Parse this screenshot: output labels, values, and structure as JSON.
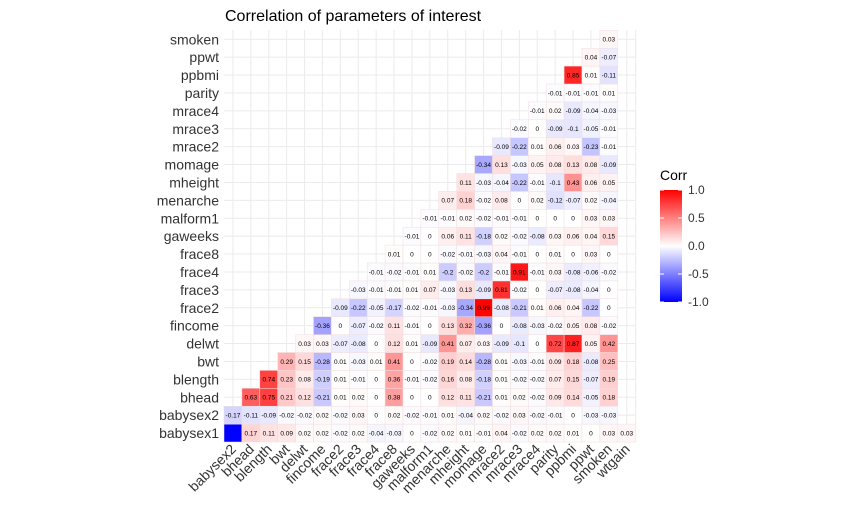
{
  "chart_data": {
    "type": "heatmap",
    "title": "Correlation of parameters of interest",
    "variables": [
      "babysex1",
      "babysex2",
      "bhead",
      "blength",
      "bwt",
      "delwt",
      "fincome",
      "frace2",
      "frace3",
      "frace4",
      "frace8",
      "gaweeks",
      "malform1",
      "menarche",
      "mheight",
      "momage",
      "mrace2",
      "mrace3",
      "mrace4",
      "parity",
      "ppbmi",
      "ppwt",
      "smoken",
      "wtgain"
    ],
    "x_tick_labels": [
      "babysex2",
      "bhead",
      "blength",
      "bwt",
      "delwt",
      "fincome",
      "frace2",
      "frace3",
      "frace4",
      "frace8",
      "gaweeks",
      "malform1",
      "menarche",
      "mheight",
      "momage",
      "mrace2",
      "mrace3",
      "mrace4",
      "parity",
      "ppbmi",
      "ppwt",
      "smoken",
      "wtgain"
    ],
    "y_tick_labels": [
      "babysex1",
      "babysex2",
      "bhead",
      "blength",
      "bwt",
      "delwt",
      "fincome",
      "frace2",
      "frace3",
      "frace4",
      "frace8",
      "gaweeks",
      "malform1",
      "menarche",
      "mheight",
      "momage",
      "mrace2",
      "mrace3",
      "mrace4",
      "parity",
      "ppbmi",
      "ppwt",
      "smoken"
    ],
    "rows": [
      {
        "var": "babysex1",
        "labels": [
          "",
          "0.17",
          "0.11",
          "0.09",
          "0.02",
          "0.02",
          "-0.02",
          "0.02",
          "-0.04",
          "-0.03",
          "0",
          "-0.02",
          "0.02",
          "0.01",
          "-0.01",
          "0.04",
          "-0.02",
          "0.02",
          "0.02",
          "0.01",
          "0",
          "0.03",
          "0.03"
        ],
        "values": [
          -1,
          0.17,
          0.11,
          0.09,
          0.02,
          0.02,
          -0.02,
          0.02,
          -0.04,
          -0.03,
          0,
          -0.02,
          0.02,
          0.01,
          -0.01,
          0.04,
          -0.02,
          0.02,
          0.02,
          0.01,
          0,
          0.03,
          0.03
        ]
      },
      {
        "var": "babysex2",
        "labels": [
          "-0.17",
          "-0.11",
          "-0.09",
          "-0.02",
          "-0.02",
          "0.02",
          "-0.02",
          "0.03",
          "0",
          "0.02",
          "-0.02",
          "-0.01",
          "0.01",
          "-0.04",
          "0.02",
          "-0.02",
          "0.03",
          "-0.02",
          "-0.01",
          "0",
          "-0.03",
          "-0.03"
        ],
        "values": [
          -0.17,
          -0.11,
          -0.09,
          -0.02,
          -0.02,
          0.02,
          -0.02,
          0.03,
          0,
          0.02,
          -0.02,
          -0.01,
          0.01,
          -0.04,
          0.02,
          -0.02,
          0.03,
          -0.02,
          -0.01,
          0,
          -0.03,
          -0.03
        ]
      },
      {
        "var": "bhead",
        "labels": [
          "0.63",
          "0.75",
          "0.21",
          "0.12",
          "-0.21",
          "0.01",
          "0.02",
          "0",
          "0.38",
          "0",
          "0",
          "0.12",
          "0.11",
          "-0.21",
          "0.01",
          "0.02",
          "-0.02",
          "0.09",
          "0.14",
          "-0.05",
          "0.18"
        ],
        "values": [
          0.63,
          0.75,
          0.21,
          0.12,
          -0.21,
          0.01,
          0.02,
          0,
          0.38,
          0,
          0,
          0.12,
          0.11,
          -0.21,
          0.01,
          0.02,
          -0.02,
          0.09,
          0.14,
          -0.05,
          0.18
        ]
      },
      {
        "var": "blength",
        "labels": [
          "0.74",
          "0.23",
          "0.08",
          "-0.19",
          "0.01",
          "-0.01",
          "0",
          "0.36",
          "-0.01",
          "-0.02",
          "0.16",
          "0.08",
          "-0.18",
          "0.01",
          "-0.02",
          "-0.02",
          "0.07",
          "0.15",
          "-0.07",
          "0.19"
        ],
        "values": [
          0.74,
          0.23,
          0.08,
          -0.19,
          0.01,
          -0.01,
          0,
          0.36,
          -0.01,
          -0.02,
          0.16,
          0.08,
          -0.18,
          0.01,
          -0.02,
          -0.02,
          0.07,
          0.15,
          -0.07,
          0.19
        ]
      },
      {
        "var": "bwt",
        "labels": [
          "0.29",
          "0.15",
          "-0.28",
          "0.01",
          "-0.03",
          "0.01",
          "0.41",
          "0",
          "-0.02",
          "0.19",
          "0.14",
          "-0.28",
          "0.01",
          "-0.03",
          "-0.01",
          "0.09",
          "0.18",
          "-0.08",
          "0.25"
        ],
        "values": [
          0.29,
          0.15,
          -0.28,
          0.01,
          -0.03,
          0.01,
          0.41,
          0,
          -0.02,
          0.19,
          0.14,
          -0.28,
          0.01,
          -0.03,
          -0.01,
          0.09,
          0.18,
          -0.08,
          0.25
        ]
      },
      {
        "var": "delwt",
        "labels": [
          "0.03",
          "0.03",
          "-0.07",
          "-0.08",
          "0",
          "0.12",
          "0.01",
          "-0.09",
          "0.41",
          "0.07",
          "0.03",
          "-0.09",
          "-0.1",
          "0",
          "0.72",
          "0.87",
          "0.05",
          "0.42"
        ],
        "values": [
          0.03,
          0.03,
          -0.07,
          -0.08,
          0,
          0.12,
          0.01,
          -0.09,
          0.41,
          0.07,
          0.03,
          -0.09,
          -0.1,
          0,
          0.72,
          0.87,
          0.05,
          0.42
        ]
      },
      {
        "var": "fincome",
        "labels": [
          "-0.36",
          "0",
          "-0.07",
          "-0.02",
          "0.11",
          "-0.01",
          "0",
          "0.13",
          "0.32",
          "-0.36",
          "0",
          "-0.08",
          "-0.03",
          "-0.02",
          "0.05",
          "0.08",
          "-0.02"
        ],
        "values": [
          -0.36,
          0,
          -0.07,
          -0.02,
          0.11,
          -0.01,
          0,
          0.13,
          0.32,
          -0.36,
          0,
          -0.08,
          -0.03,
          -0.02,
          0.05,
          0.08,
          -0.02
        ]
      },
      {
        "var": "frace2",
        "labels": [
          "-0.09",
          "-0.22",
          "-0.05",
          "-0.17",
          "-0.02",
          "-0.01",
          "-0.03",
          "-0.34",
          "0.99",
          "-0.08",
          "-0.21",
          "0.01",
          "0.06",
          "0.04",
          "-0.22",
          "0"
        ],
        "values": [
          -0.09,
          -0.22,
          -0.05,
          -0.17,
          -0.02,
          -0.01,
          -0.03,
          -0.34,
          0.99,
          -0.08,
          -0.21,
          0.01,
          0.06,
          0.04,
          -0.22,
          0
        ]
      },
      {
        "var": "frace3",
        "labels": [
          "-0.03",
          "-0.01",
          "-0.01",
          "0.01",
          "0.07",
          "-0.03",
          "0.13",
          "-0.09",
          "0.81",
          "-0.02",
          "0",
          "-0.07",
          "-0.08",
          "-0.04",
          "0"
        ],
        "values": [
          -0.03,
          -0.01,
          -0.01,
          0.01,
          0.07,
          -0.03,
          0.13,
          -0.09,
          0.81,
          -0.02,
          0,
          -0.07,
          -0.08,
          -0.04,
          0
        ]
      },
      {
        "var": "frace4",
        "labels": [
          "-0.01",
          "-0.02",
          "-0.01",
          "0.01",
          "-0.2",
          "-0.02",
          "-0.2",
          "-0.01",
          "0.91",
          "-0.01",
          "0.03",
          "-0.08",
          "-0.06",
          "-0.02"
        ],
        "values": [
          -0.01,
          -0.02,
          -0.01,
          0.01,
          -0.2,
          -0.02,
          -0.2,
          -0.01,
          0.91,
          -0.01,
          0.03,
          -0.08,
          -0.06,
          -0.02
        ]
      },
      {
        "var": "frace8",
        "labels": [
          "0.01",
          "0",
          "0",
          "-0.02",
          "-0.01",
          "-0.03",
          "0.04",
          "-0.01",
          "0",
          "0.01",
          "0",
          "0.03",
          "0"
        ],
        "values": [
          0.01,
          0,
          0,
          -0.02,
          -0.01,
          -0.03,
          0.04,
          -0.01,
          0,
          0.01,
          0,
          0.03,
          0
        ]
      },
      {
        "var": "gaweeks",
        "labels": [
          "-0.01",
          "0",
          "0.06",
          "0.11",
          "-0.18",
          "0.02",
          "-0.02",
          "-0.08",
          "0.03",
          "0.06",
          "0.04",
          "0.15"
        ],
        "values": [
          -0.01,
          0,
          0.06,
          0.11,
          -0.18,
          0.02,
          -0.02,
          -0.08,
          0.03,
          0.06,
          0.04,
          0.15
        ]
      },
      {
        "var": "malform1",
        "labels": [
          "-0.01",
          "-0.01",
          "0.02",
          "-0.02",
          "-0.01",
          "-0.01",
          "0",
          "0",
          "0",
          "0.03",
          "0.03"
        ],
        "values": [
          -0.01,
          -0.01,
          0.02,
          -0.02,
          -0.01,
          -0.01,
          0,
          0,
          0,
          0.03,
          0.03
        ]
      },
      {
        "var": "menarche",
        "labels": [
          "0.07",
          "0.18",
          "-0.02",
          "0.08",
          "0",
          "0.02",
          "-0.12",
          "-0.07",
          "0.02",
          "-0.04"
        ],
        "values": [
          0.07,
          0.18,
          -0.02,
          0.08,
          0,
          0.02,
          -0.12,
          -0.07,
          0.02,
          -0.04
        ]
      },
      {
        "var": "mheight",
        "labels": [
          "0.11",
          "-0.03",
          "-0.04",
          "-0.22",
          "-0.01",
          "-0.1",
          "0.43",
          "0.06",
          "0.05"
        ],
        "values": [
          0.11,
          -0.03,
          -0.04,
          -0.22,
          -0.01,
          -0.1,
          0.43,
          0.06,
          0.05
        ]
      },
      {
        "var": "momage",
        "labels": [
          "-0.34",
          "0.13",
          "-0.03",
          "0.05",
          "0.08",
          "0.13",
          "0.08",
          "-0.09"
        ],
        "values": [
          -0.34,
          0.13,
          -0.03,
          0.05,
          0.08,
          0.13,
          0.08,
          -0.09
        ]
      },
      {
        "var": "mrace2",
        "labels": [
          "-0.09",
          "-0.22",
          "0.01",
          "0.06",
          "0.03",
          "-0.23",
          "-0.01"
        ],
        "values": [
          -0.09,
          -0.22,
          0.01,
          0.06,
          0.03,
          -0.23,
          -0.01
        ]
      },
      {
        "var": "mrace3",
        "labels": [
          "-0.02",
          "0",
          "-0.09",
          "-0.1",
          "-0.05",
          "-0.01"
        ],
        "values": [
          -0.02,
          0,
          -0.09,
          -0.1,
          -0.05,
          -0.01
        ]
      },
      {
        "var": "mrace4",
        "labels": [
          "-0.01",
          "0.02",
          "-0.09",
          "-0.04",
          "-0.03"
        ],
        "values": [
          -0.01,
          0.02,
          -0.09,
          -0.04,
          -0.03
        ]
      },
      {
        "var": "parity",
        "labels": [
          "-0.01",
          "-0.01",
          "-0.01",
          "0.01"
        ],
        "values": [
          -0.01,
          -0.01,
          -0.01,
          0.01
        ]
      },
      {
        "var": "ppbmi",
        "labels": [
          "0.85",
          "0.01",
          "-0.11"
        ],
        "values": [
          0.85,
          0.01,
          -0.11
        ]
      },
      {
        "var": "ppwt",
        "labels": [
          "0.04",
          "-0.07"
        ],
        "values": [
          0.04,
          -0.07
        ]
      },
      {
        "var": "smoken",
        "labels": [
          "0.03"
        ],
        "values": [
          0.03
        ]
      }
    ],
    "legend": {
      "title": "Corr",
      "ticks": [
        "1.0",
        "0.5",
        "0.0",
        "-0.5",
        "-1.0"
      ],
      "tick_values": [
        1.0,
        0.5,
        0.0,
        -0.5,
        -1.0
      ],
      "range": [
        -1,
        1
      ],
      "placement": "right"
    },
    "colors": {
      "low": "#0000ff",
      "mid": "#ffffff",
      "high": "#ff0000",
      "grid": "#ebebeb",
      "cell_border": "#f0dede"
    }
  }
}
